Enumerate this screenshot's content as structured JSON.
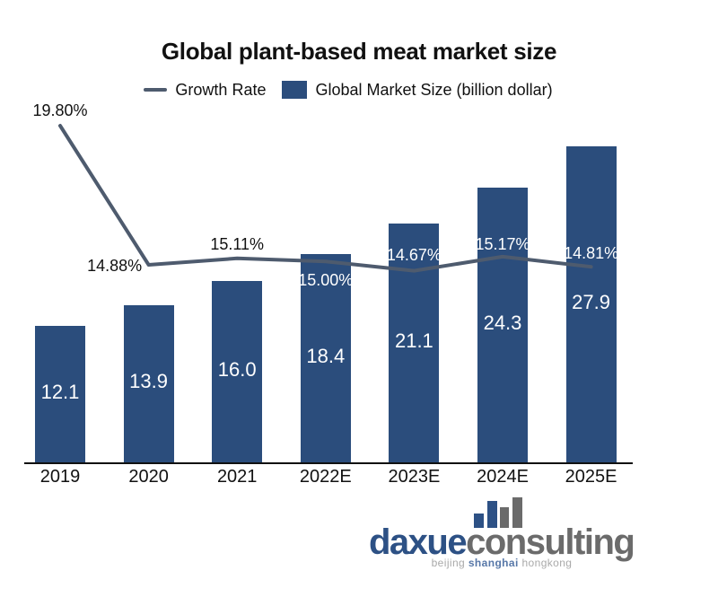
{
  "title": "Global plant-based meat market size",
  "legend": [
    {
      "label": "Growth Rate",
      "swatch": "line"
    },
    {
      "label": "Global Market Size (billion dollar)",
      "swatch": "square"
    }
  ],
  "colors": {
    "bar": "#2b4d7c",
    "line": "#4e5b6e",
    "text_dark": "#111111",
    "text_white": "#ffffff",
    "axis": "#111111",
    "logo_blue": "#2d5185",
    "logo_gray": "#6b6b6b",
    "tagline_gray": "#a9a9a9",
    "tagline_blue": "#5878a8"
  },
  "chart_data": {
    "type": "bar",
    "title": "Global plant-based meat market size",
    "xlabel": "",
    "ylabel": "",
    "grid": false,
    "legend_position": "top",
    "categories": [
      "2019",
      "2020",
      "2021",
      "2022E",
      "2023E",
      "2024E",
      "2025E"
    ],
    "series": [
      {
        "name": "Global Market Size (billion dollar)",
        "type": "bar",
        "color": "#2b4d7c",
        "values": [
          12.1,
          13.9,
          16.0,
          18.4,
          21.1,
          24.3,
          27.9
        ],
        "value_labels": [
          "12.1",
          "13.9",
          "16.0",
          "18.4",
          "21.1",
          "24.3",
          "27.9"
        ]
      },
      {
        "name": "Growth Rate",
        "type": "line",
        "color": "#4e5b6e",
        "unit": "%",
        "values": [
          19.8,
          14.88,
          15.11,
          15.0,
          14.67,
          15.17,
          14.81
        ],
        "value_labels": [
          "19.80%",
          "14.88%",
          "15.11%",
          "15.00%",
          "14.67%",
          "15.17%",
          "14.81%"
        ]
      }
    ]
  },
  "logo": {
    "brand_primary": "daxue",
    "brand_secondary": "consulting",
    "tagline_1": "beijing",
    "tagline_2": "shanghai",
    "tagline_3": "hongkong"
  }
}
